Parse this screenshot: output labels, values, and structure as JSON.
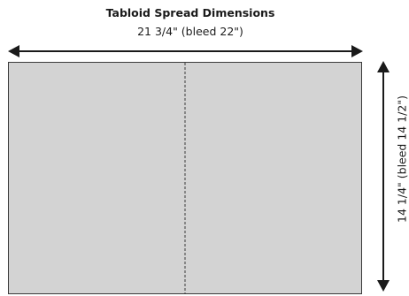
{
  "title": "Tabloid Spread Dimensions",
  "width_label": "21 3/4\" (bleed 22\")",
  "height_label": "14 1/4\" (bleed 14 1/2\")",
  "colors": {
    "page_fill": "#d3d3d3",
    "page_border": "#3a3a3a",
    "arrow": "#1a1a1a",
    "text": "#1a1a1a"
  }
}
